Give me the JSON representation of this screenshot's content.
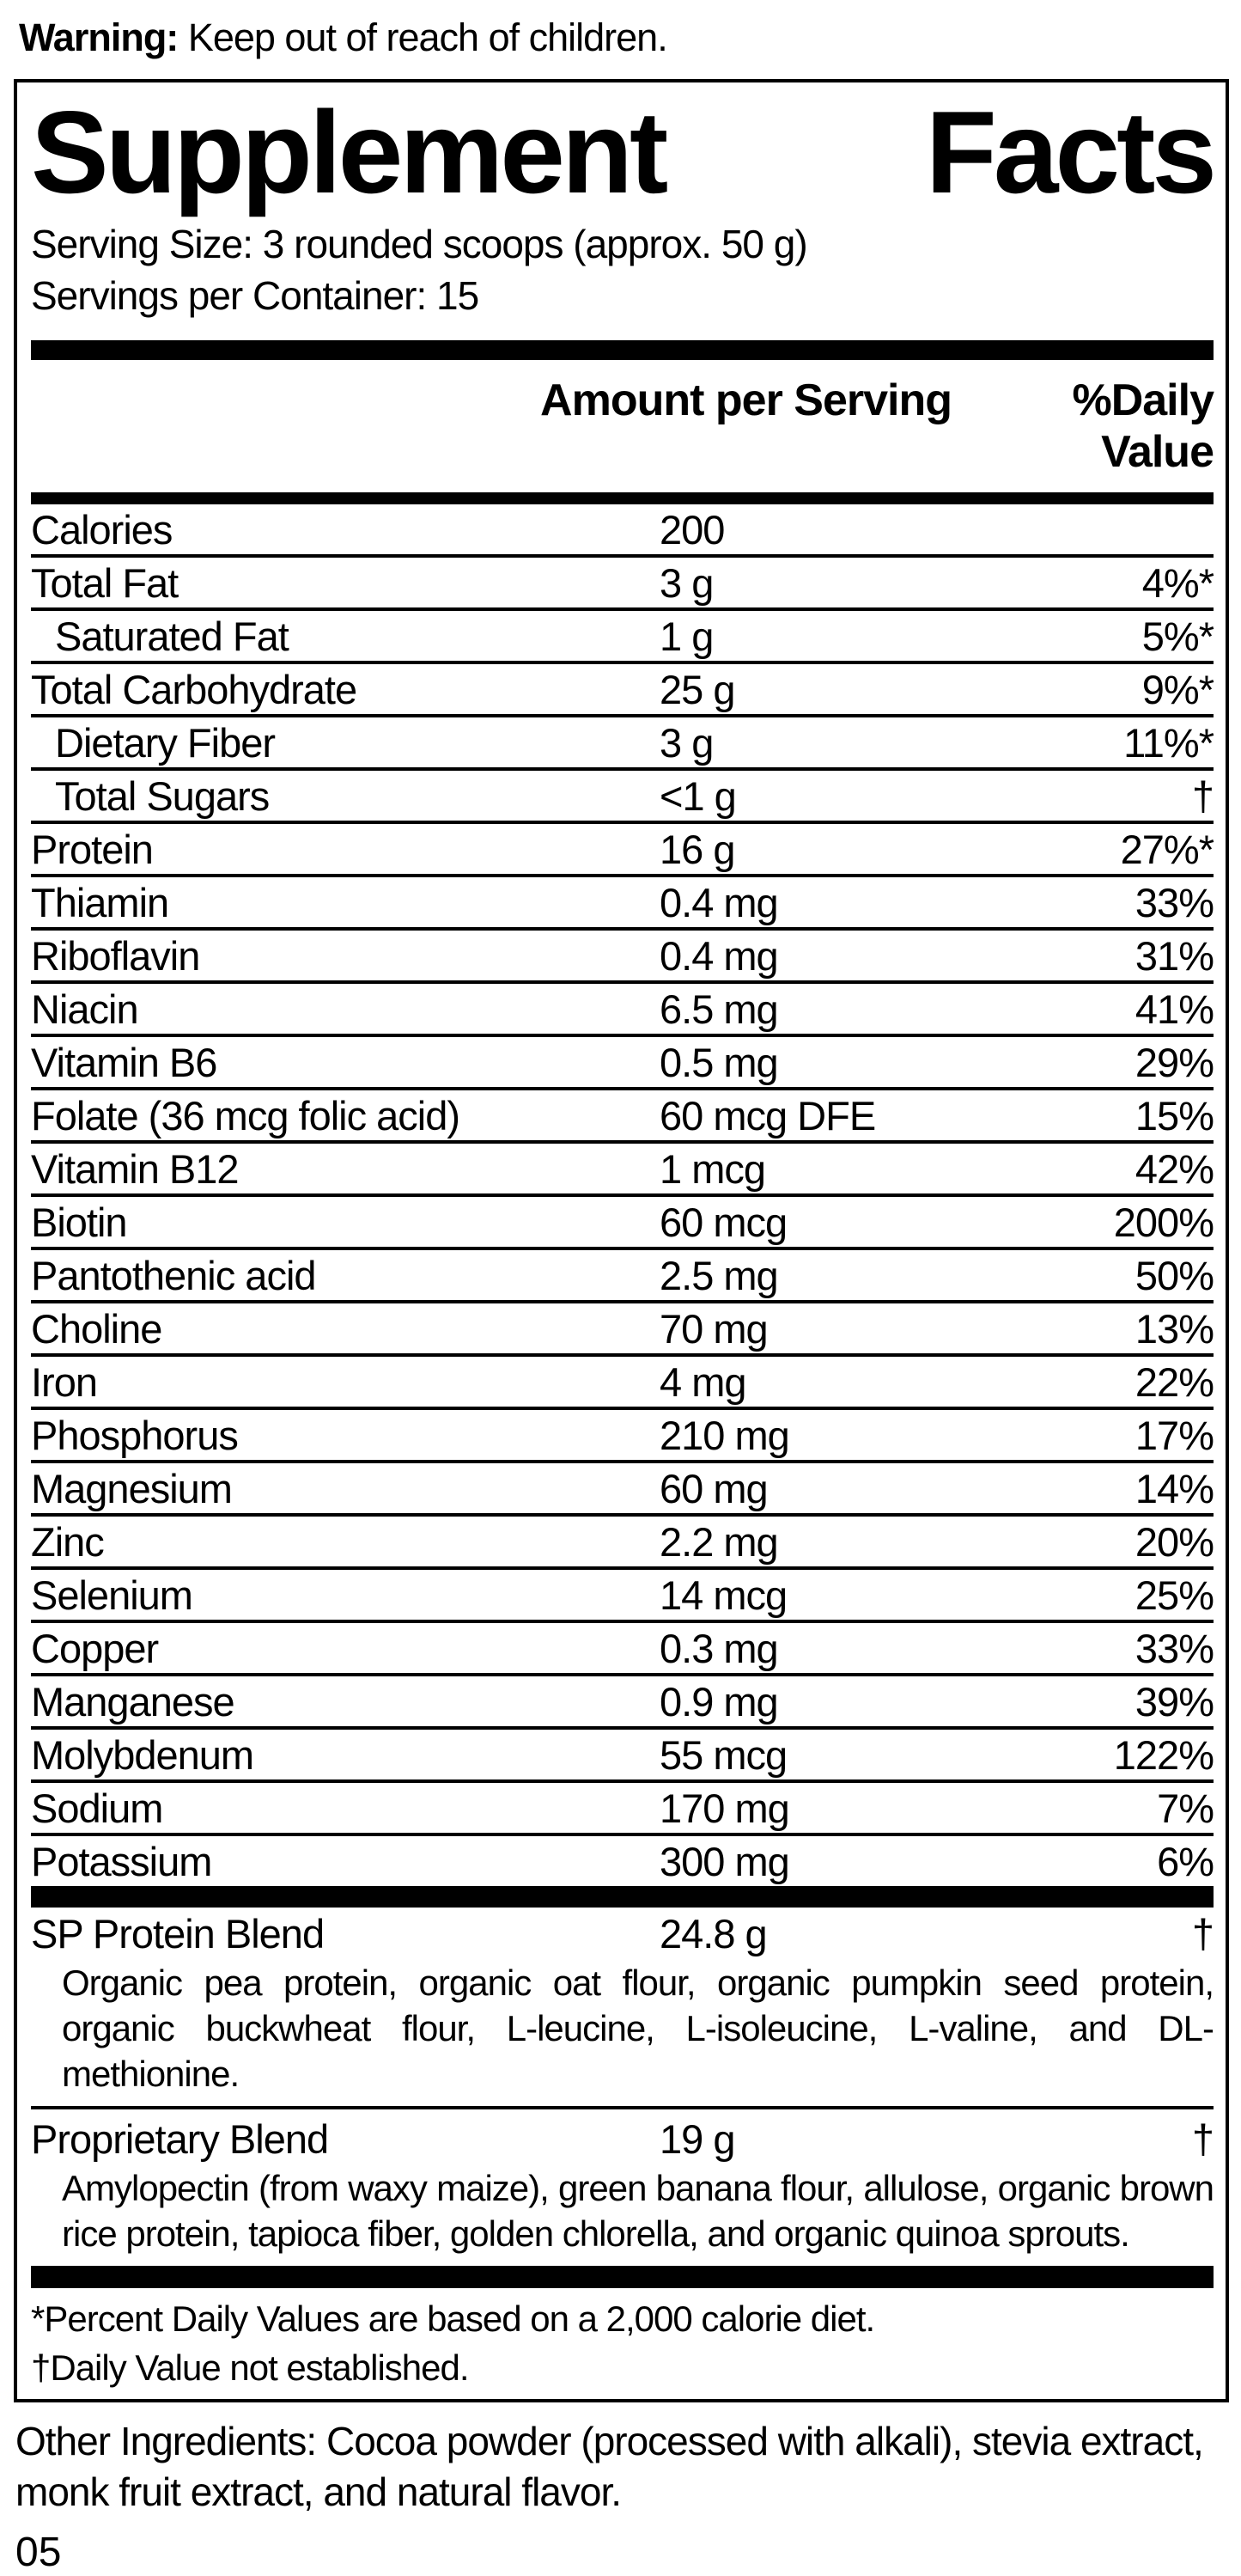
{
  "warning": {
    "label": "Warning:",
    "text": "Keep out of reach of children."
  },
  "panel": {
    "title_words": [
      "Supplement",
      "Facts"
    ],
    "serving_size": "Serving Size: 3 rounded scoops (approx. 50 g)",
    "servings_per_container": "Servings per Container: 15",
    "columns": {
      "amount": "Amount per Serving",
      "daily_value": "%Daily Value"
    },
    "rows": [
      {
        "label": "Calories",
        "amount": "200",
        "dv": ""
      },
      {
        "label": "Total Fat",
        "amount": "3 g",
        "dv": "4%*"
      },
      {
        "label": "Saturated Fat",
        "amount": "1 g",
        "dv": "5%*",
        "indent": true
      },
      {
        "label": "Total Carbohydrate",
        "amount": "25 g",
        "dv": "9%*"
      },
      {
        "label": "Dietary Fiber",
        "amount": "3 g",
        "dv": "11%*",
        "indent": true
      },
      {
        "label": "Total Sugars",
        "amount": "<1 g",
        "dv": "†",
        "indent": true
      },
      {
        "label": "Protein",
        "amount": "16 g",
        "dv": "27%*"
      },
      {
        "label": "Thiamin",
        "amount": "0.4 mg",
        "dv": "33%"
      },
      {
        "label": "Riboflavin",
        "amount": "0.4 mg",
        "dv": "31%"
      },
      {
        "label": "Niacin",
        "amount": "6.5 mg",
        "dv": "41%"
      },
      {
        "label": "Vitamin B6",
        "amount": "0.5 mg",
        "dv": "29%"
      },
      {
        "label": "Folate (36 mcg folic acid)",
        "amount": "60 mcg DFE",
        "dv": "15%"
      },
      {
        "label": "Vitamin B12",
        "amount": "1 mcg",
        "dv": "42%"
      },
      {
        "label": "Biotin",
        "amount": "60 mcg",
        "dv": "200%"
      },
      {
        "label": "Pantothenic acid",
        "amount": "2.5 mg",
        "dv": "50%"
      },
      {
        "label": "Choline",
        "amount": "70 mg",
        "dv": "13%"
      },
      {
        "label": "Iron",
        "amount": "4 mg",
        "dv": "22%"
      },
      {
        "label": "Phosphorus",
        "amount": "210 mg",
        "dv": "17%"
      },
      {
        "label": "Magnesium",
        "amount": "60 mg",
        "dv": "14%"
      },
      {
        "label": "Zinc",
        "amount": "2.2 mg",
        "dv": "20%"
      },
      {
        "label": "Selenium",
        "amount": "14 mcg",
        "dv": "25%"
      },
      {
        "label": "Copper",
        "amount": "0.3 mg",
        "dv": "33%"
      },
      {
        "label": "Manganese",
        "amount": "0.9 mg",
        "dv": "39%"
      },
      {
        "label": "Molybdenum",
        "amount": "55 mcg",
        "dv": "122%"
      },
      {
        "label": "Sodium",
        "amount": "170 mg",
        "dv": "7%"
      },
      {
        "label": "Potassium",
        "amount": "300 mg",
        "dv": "6%"
      }
    ],
    "blends": [
      {
        "label": "SP Protein Blend",
        "amount": "24.8 g",
        "dv": "†",
        "description": "Organic pea protein, organic oat flour, organic pumpkin seed protein, organic buckwheat flour, L-leucine, L-isoleucine, L-valine, and DL-methionine."
      },
      {
        "label": "Proprietary Blend",
        "amount": "19 g",
        "dv": "†",
        "description": "Amylopectin (from waxy maize), green banana flour, allulose, organic brown rice protein, tapioca fiber, golden chlorella, and organic quinoa sprouts."
      }
    ],
    "footnotes": [
      "*Percent Daily Values are based on a 2,000 calorie diet.",
      "†Daily Value not established."
    ]
  },
  "other_ingredients": "Other Ingredients: Cocoa powder (processed with alkali), stevia extract, monk fruit extract, and natural flavor.",
  "page_number": "05",
  "colors": {
    "ink": "#000000",
    "background": "#ffffff"
  }
}
